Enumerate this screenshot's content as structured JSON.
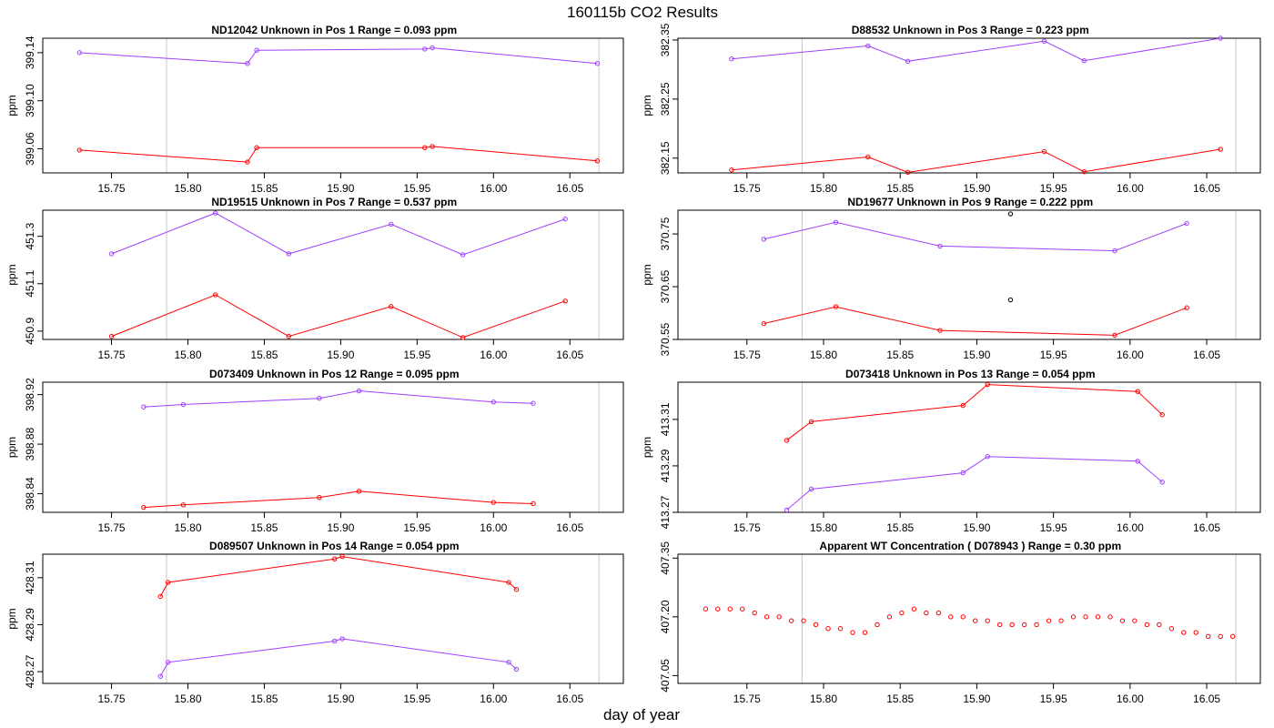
{
  "figure_title": "160115b  CO2 Results",
  "x_axis_label": "day of year",
  "colors": {
    "series1": "#a040ff",
    "series2": "#ff0000",
    "reference_lines": "#c8c8c8",
    "outlier": "#000000"
  },
  "chart_data": [
    {
      "type": "line",
      "title": "ND12042    Unknown in Pos 1          Range =  0.093 ppm",
      "ylabel": "ppm",
      "xlim": [
        15.705,
        16.085
      ],
      "ylim": [
        399.04,
        399.152
      ],
      "xticks": [
        15.75,
        15.8,
        15.85,
        15.9,
        15.95,
        16.0,
        16.05
      ],
      "xtick_labels": [
        "15.75",
        "15.80",
        "15.85",
        "15.90",
        "15.95",
        "16.00",
        "16.05"
      ],
      "yticks": [
        399.06,
        399.1,
        399.14
      ],
      "ytick_labels": [
        "399.06",
        "399.10",
        "399.14"
      ],
      "vlines": [
        15.786,
        16.069
      ],
      "series": [
        {
          "name": "upper",
          "color": "#a040ff",
          "x": [
            15.729,
            15.839,
            15.845,
            15.955,
            15.96,
            16.068
          ],
          "y": [
            399.14,
            399.131,
            399.142,
            399.143,
            399.144,
            399.131
          ]
        },
        {
          "name": "lower",
          "color": "#ff0000",
          "x": [
            15.729,
            15.839,
            15.845,
            15.955,
            15.96,
            16.068
          ],
          "y": [
            399.059,
            399.049,
            399.061,
            399.061,
            399.062,
            399.05
          ]
        }
      ]
    },
    {
      "type": "line",
      "title": "D88532    Unknown in Pos 3          Range =  0.223 ppm",
      "ylabel": "ppm",
      "xlim": [
        15.705,
        16.085
      ],
      "ylim": [
        382.125,
        382.353
      ],
      "xticks": [
        15.75,
        15.8,
        15.85,
        15.9,
        15.95,
        16.0,
        16.05
      ],
      "xtick_labels": [
        "15.75",
        "15.80",
        "15.85",
        "15.90",
        "15.95",
        "16.00",
        "16.05"
      ],
      "yticks": [
        382.15,
        382.25,
        382.35
      ],
      "ytick_labels": [
        "382.15",
        "382.25",
        "382.35"
      ],
      "vlines": [
        15.786,
        16.069
      ],
      "series": [
        {
          "name": "upper",
          "color": "#a040ff",
          "x": [
            15.74,
            15.829,
            15.855,
            15.944,
            15.97,
            16.059
          ],
          "y": [
            382.318,
            382.34,
            382.314,
            382.348,
            382.315,
            382.353
          ]
        },
        {
          "name": "lower",
          "color": "#ff0000",
          "x": [
            15.74,
            15.829,
            15.855,
            15.944,
            15.97,
            16.059
          ],
          "y": [
            382.13,
            382.152,
            382.126,
            382.161,
            382.127,
            382.165
          ]
        }
      ]
    },
    {
      "type": "line",
      "title": "ND19515    Unknown in Pos 7          Range =  0.537 ppm",
      "ylabel": "ppm",
      "xlim": [
        15.705,
        16.085
      ],
      "ylim": [
        450.865,
        451.41
      ],
      "xticks": [
        15.75,
        15.8,
        15.85,
        15.9,
        15.95,
        16.0,
        16.05
      ],
      "xtick_labels": [
        "15.75",
        "15.80",
        "15.85",
        "15.90",
        "15.95",
        "16.00",
        "16.05"
      ],
      "yticks": [
        450.9,
        451.1,
        451.3
      ],
      "ytick_labels": [
        "450.9",
        "451.1",
        "451.3"
      ],
      "vlines": [
        15.786,
        16.069
      ],
      "series": [
        {
          "name": "upper",
          "color": "#a040ff",
          "x": [
            15.75,
            15.818,
            15.866,
            15.933,
            15.98,
            16.047
          ],
          "y": [
            451.226,
            451.398,
            451.226,
            451.351,
            451.222,
            451.373
          ]
        },
        {
          "name": "lower",
          "color": "#ff0000",
          "x": [
            15.75,
            15.818,
            15.866,
            15.933,
            15.98,
            16.047
          ],
          "y": [
            450.878,
            451.053,
            450.878,
            451.004,
            450.873,
            451.027
          ]
        }
      ]
    },
    {
      "type": "line",
      "title": "ND19677    Unknown in Pos 9          Range =  0.222 ppm",
      "ylabel": "ppm",
      "xlim": [
        15.705,
        16.085
      ],
      "ylim": [
        370.55,
        370.795
      ],
      "xticks": [
        15.75,
        15.8,
        15.85,
        15.9,
        15.95,
        16.0,
        16.05
      ],
      "xtick_labels": [
        "15.75",
        "15.80",
        "15.85",
        "15.90",
        "15.95",
        "16.00",
        "16.05"
      ],
      "yticks": [
        370.55,
        370.65,
        370.75
      ],
      "ytick_labels": [
        "370.55",
        "370.65",
        "370.75"
      ],
      "vlines": [
        15.786,
        16.069
      ],
      "series": [
        {
          "name": "upper",
          "color": "#a040ff",
          "x": [
            15.761,
            15.808,
            15.876,
            15.99,
            16.037
          ],
          "y": [
            370.74,
            370.772,
            370.727,
            370.718,
            370.77
          ]
        },
        {
          "name": "lower",
          "color": "#ff0000",
          "x": [
            15.761,
            15.808,
            15.876,
            15.99,
            16.037
          ],
          "y": [
            370.58,
            370.612,
            370.567,
            370.558,
            370.61
          ]
        }
      ],
      "outliers": {
        "color": "#000000",
        "x": [
          15.922,
          15.922
        ],
        "y": [
          370.788,
          370.625
        ]
      }
    },
    {
      "type": "line",
      "title": "D073409    Unknown in Pos 12          Range =  0.095 ppm",
      "ylabel": "ppm",
      "xlim": [
        15.705,
        16.085
      ],
      "ylim": [
        398.825,
        398.93
      ],
      "xticks": [
        15.75,
        15.8,
        15.85,
        15.9,
        15.95,
        16.0,
        16.05
      ],
      "xtick_labels": [
        "15.75",
        "15.80",
        "15.85",
        "15.90",
        "15.95",
        "16.00",
        "16.05"
      ],
      "yticks": [
        398.84,
        398.88,
        398.92
      ],
      "ytick_labels": [
        "398.84",
        "398.88",
        "398.92"
      ],
      "vlines": [
        15.786,
        16.069
      ],
      "series": [
        {
          "name": "upper",
          "color": "#a040ff",
          "x": [
            15.771,
            15.797,
            15.886,
            15.912,
            16.0,
            16.026
          ],
          "y": [
            398.91,
            398.912,
            398.917,
            398.923,
            398.914,
            398.913
          ]
        },
        {
          "name": "lower",
          "color": "#ff0000",
          "x": [
            15.771,
            15.797,
            15.886,
            15.912,
            16.0,
            16.026
          ],
          "y": [
            398.829,
            398.831,
            398.837,
            398.842,
            398.833,
            398.832
          ]
        }
      ]
    },
    {
      "type": "line",
      "title": "D073418    Unknown in Pos 13          Range =  0.054 ppm",
      "ylabel": "ppm",
      "xlim": [
        15.705,
        16.085
      ],
      "ylim": [
        413.27,
        413.326
      ],
      "xticks": [
        15.75,
        15.8,
        15.85,
        15.9,
        15.95,
        16.0,
        16.05
      ],
      "xtick_labels": [
        "15.75",
        "15.80",
        "15.85",
        "15.90",
        "15.95",
        "16.00",
        "16.05"
      ],
      "yticks": [
        413.27,
        413.29,
        413.31
      ],
      "ytick_labels": [
        "413.27",
        "413.29",
        "413.31"
      ],
      "vlines": [
        15.786,
        16.069
      ],
      "series": [
        {
          "name": "upper",
          "color": "#ff0000",
          "x": [
            15.776,
            15.792,
            15.891,
            15.907,
            16.005,
            16.021
          ],
          "y": [
            413.301,
            413.309,
            413.316,
            413.325,
            413.322,
            413.312
          ]
        },
        {
          "name": "lower",
          "color": "#a040ff",
          "x": [
            15.776,
            15.792,
            15.891,
            15.907,
            16.005,
            16.021
          ],
          "y": [
            413.271,
            413.28,
            413.287,
            413.294,
            413.292,
            413.283
          ]
        }
      ]
    },
    {
      "type": "line",
      "title": "D089507    Unknown in Pos 14          Range =  0.054 ppm",
      "ylabel": "ppm",
      "xlim": [
        15.705,
        16.085
      ],
      "ylim": [
        428.265,
        428.32
      ],
      "xticks": [
        15.75,
        15.8,
        15.85,
        15.9,
        15.95,
        16.0,
        16.05
      ],
      "xtick_labels": [
        "15.75",
        "15.80",
        "15.85",
        "15.90",
        "15.95",
        "16.00",
        "16.05"
      ],
      "yticks": [
        428.27,
        428.29,
        428.31
      ],
      "ytick_labels": [
        "428.27",
        "428.29",
        "428.31"
      ],
      "vlines": [
        15.786,
        16.069
      ],
      "series": [
        {
          "name": "upper",
          "color": "#ff0000",
          "x": [
            15.782,
            15.787,
            15.896,
            15.901,
            16.01,
            16.015
          ],
          "y": [
            428.302,
            428.308,
            428.318,
            428.319,
            428.308,
            428.305
          ]
        },
        {
          "name": "lower",
          "color": "#a040ff",
          "x": [
            15.782,
            15.787,
            15.896,
            15.901,
            16.01,
            16.015
          ],
          "y": [
            428.268,
            428.274,
            428.283,
            428.284,
            428.274,
            428.271
          ]
        }
      ]
    },
    {
      "type": "scatter",
      "title": "Apparent WT Concentration ( D078943 )          Range = 0.30 ppm",
      "ylabel": "",
      "xlim": [
        15.705,
        16.085
      ],
      "ylim": [
        407.03,
        407.36
      ],
      "xticks": [
        15.75,
        15.8,
        15.85,
        15.9,
        15.95,
        16.0,
        16.05
      ],
      "xtick_labels": [
        "15.75",
        "15.80",
        "15.85",
        "15.90",
        "15.95",
        "16.00",
        "16.05"
      ],
      "yticks": [
        407.05,
        407.2,
        407.35
      ],
      "ytick_labels": [
        "407.05",
        "407.20",
        "407.35"
      ],
      "vlines": [
        15.786,
        16.069
      ],
      "series": [
        {
          "name": "wt",
          "color": "#ff0000",
          "x": [
            15.723,
            15.731,
            15.739,
            15.747,
            15.755,
            15.763,
            15.771,
            15.779,
            15.787,
            15.795,
            15.803,
            15.811,
            15.819,
            15.827,
            15.835,
            15.843,
            15.851,
            15.859,
            15.867,
            15.875,
            15.883,
            15.891,
            15.899,
            15.907,
            15.915,
            15.923,
            15.931,
            15.939,
            15.947,
            15.955,
            15.963,
            15.971,
            15.979,
            15.987,
            15.995,
            16.003,
            16.011,
            16.019,
            16.027,
            16.035,
            16.043,
            16.051,
            16.059,
            16.067
          ],
          "y": [
            407.22,
            407.22,
            407.22,
            407.22,
            407.21,
            407.2,
            407.2,
            407.19,
            407.19,
            407.18,
            407.17,
            407.17,
            407.16,
            407.16,
            407.18,
            407.2,
            407.21,
            407.22,
            407.21,
            407.21,
            407.2,
            407.2,
            407.19,
            407.19,
            407.18,
            407.18,
            407.18,
            407.18,
            407.19,
            407.19,
            407.2,
            407.2,
            407.2,
            407.2,
            407.19,
            407.19,
            407.18,
            407.18,
            407.17,
            407.16,
            407.16,
            407.15,
            407.15,
            407.15
          ]
        }
      ]
    }
  ]
}
